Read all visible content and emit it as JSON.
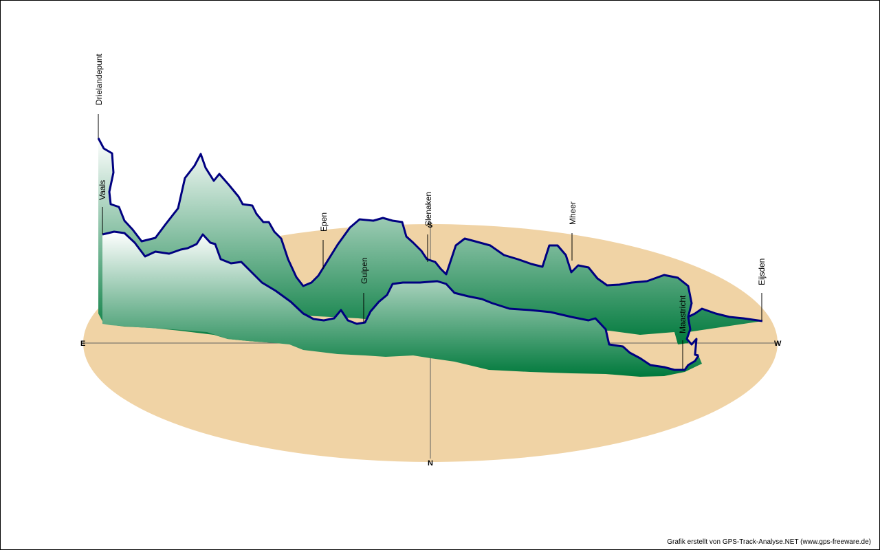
{
  "colors": {
    "ground": "#f0d3a5",
    "profile_top": "#ffffff",
    "profile_bottom": "#00793c",
    "track_line": "#000080",
    "axis": "#606060"
  },
  "compass": {
    "east": "E",
    "west": "W",
    "south": "S",
    "north": "N"
  },
  "credit": "Grafik erstellt von GPS-Track-Analyse.NET (www.gps-freeware.de)",
  "chart_data": {
    "type": "3d elevation profile",
    "places": [
      {
        "name": "Drielandepunt",
        "order": 1
      },
      {
        "name": "Vaals",
        "order": 2
      },
      {
        "name": "Epen",
        "order": 3
      },
      {
        "name": "Gulpen",
        "order": 4
      },
      {
        "name": "Slenaken",
        "order": 5
      },
      {
        "name": "Mheer",
        "order": 6
      },
      {
        "name": "Maastricht",
        "order": 7
      },
      {
        "name": "Eijsden",
        "order": 8
      }
    ],
    "grid": false,
    "legend": "none"
  }
}
